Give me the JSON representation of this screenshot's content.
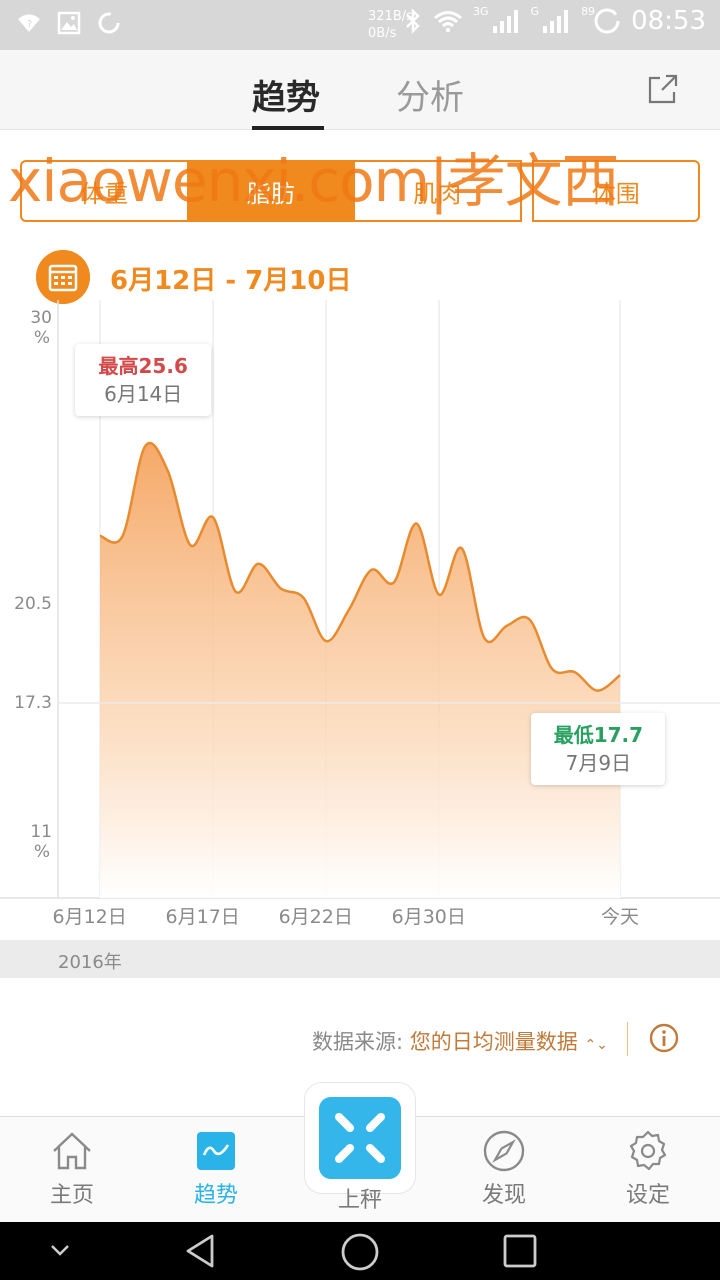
{
  "status_bar": {
    "net_up": "321B/s",
    "net_down": "0B/s",
    "sim1_tag": "3G",
    "sim2_tag": "G",
    "battery": "89",
    "time": "08:53"
  },
  "header": {
    "tabs": [
      {
        "label": "趋势",
        "active": true
      },
      {
        "label": "分析",
        "active": false
      }
    ],
    "share_icon": "share-icon"
  },
  "watermark": "xiaowenxi.com|孝文西",
  "segments": [
    {
      "label": "体重",
      "active": false
    },
    {
      "label": "脂肪",
      "active": true
    },
    {
      "label": "肌肉",
      "active": false
    },
    {
      "label": "体围",
      "active": false
    }
  ],
  "date_range": "6月12日 - 7月10日",
  "chart_data": {
    "type": "area",
    "y_ticks": [
      {
        "label": "30",
        "unit": "%",
        "value": 30
      },
      {
        "label": "20.5",
        "unit": "",
        "value": 20.5
      },
      {
        "label": "17.3",
        "unit": "",
        "value": 17.3
      },
      {
        "label": "11",
        "unit": "%",
        "value": 11
      }
    ],
    "x_ticks": [
      "6月12日",
      "6月17日",
      "6月22日",
      "6月30日",
      "今天"
    ],
    "ylim": [
      11,
      30
    ],
    "grid": "vertical",
    "color": "#f0891e",
    "points": [
      [
        0,
        22.7
      ],
      [
        1,
        22.7
      ],
      [
        2,
        25.6
      ],
      [
        3,
        24.8
      ],
      [
        4,
        22.4
      ],
      [
        5,
        23.3
      ],
      [
        6,
        20.9
      ],
      [
        7,
        21.8
      ],
      [
        8,
        21.0
      ],
      [
        9,
        20.7
      ],
      [
        10,
        19.3
      ],
      [
        11,
        20.3
      ],
      [
        12,
        21.6
      ],
      [
        13,
        21.2
      ],
      [
        14,
        23.1
      ],
      [
        15,
        20.8
      ],
      [
        16,
        22.3
      ],
      [
        17,
        19.4
      ],
      [
        18,
        19.8
      ],
      [
        19,
        20.0
      ],
      [
        20,
        18.4
      ],
      [
        21,
        18.3
      ],
      [
        22,
        17.7
      ],
      [
        23,
        18.2
      ]
    ],
    "x_tick_index": [
      0,
      5,
      10,
      15,
      23
    ],
    "reference_value": 17.3,
    "max": {
      "label": "最高25.6",
      "date": "6月14日",
      "index": 2
    },
    "min": {
      "label": "最低17.7",
      "date": "7月9日",
      "index": 22
    }
  },
  "year_label": "2016年",
  "source": {
    "prefix": "数据来源:",
    "value": "您的日均测量数据",
    "arrow": "⌃⌄"
  },
  "nav": {
    "items": [
      {
        "label": "主页",
        "icon": "home-icon"
      },
      {
        "label": "趋势",
        "icon": "trend-icon",
        "active": true
      },
      {
        "label": "上秤",
        "icon": "scale-icon"
      },
      {
        "label": "发现",
        "icon": "compass-icon"
      },
      {
        "label": "设定",
        "icon": "gear-icon"
      }
    ]
  }
}
